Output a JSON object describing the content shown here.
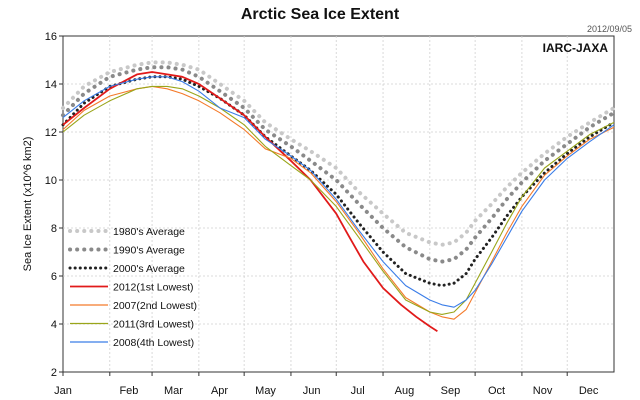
{
  "chart_data": {
    "type": "line",
    "title": "Arctic Sea Ice Extent",
    "date_stamp": "2012/09/05",
    "source_label": "IARC-JAXA",
    "ylabel": "Sea Ice Extent (x10^6 km2)",
    "xlabel": "",
    "ylim": [
      2,
      16
    ],
    "yticks": [
      2,
      4,
      6,
      8,
      10,
      12,
      14,
      16
    ],
    "xlim": [
      1,
      366
    ],
    "month_ticks": [
      {
        "label": "Jan",
        "day": 1
      },
      {
        "label": "Feb",
        "day": 32
      },
      {
        "label": "Mar",
        "day": 60
      },
      {
        "label": "Apr",
        "day": 91
      },
      {
        "label": "May",
        "day": 121
      },
      {
        "label": "Jun",
        "day": 152
      },
      {
        "label": "Jul",
        "day": 182
      },
      {
        "label": "Aug",
        "day": 213
      },
      {
        "label": "Sep",
        "day": 244
      },
      {
        "label": "Oct",
        "day": 274
      },
      {
        "label": "Nov",
        "day": 305
      },
      {
        "label": "Dec",
        "day": 335
      }
    ],
    "grid": true,
    "legend_position": "bottom-left",
    "series": [
      {
        "name": "1980's Average",
        "color": "#c8c8c8",
        "style": "dotted",
        "x": [
          1,
          15,
          32,
          50,
          60,
          70,
          80,
          91,
          105,
          121,
          135,
          152,
          165,
          182,
          197,
          213,
          228,
          244,
          252,
          260,
          268,
          274,
          285,
          295,
          305,
          320,
          335,
          350,
          366
        ],
        "y": [
          13.0,
          13.9,
          14.5,
          14.8,
          14.9,
          14.9,
          14.8,
          14.6,
          14.0,
          13.3,
          12.4,
          11.7,
          11.2,
          10.5,
          9.5,
          8.6,
          7.8,
          7.4,
          7.3,
          7.4,
          7.8,
          8.3,
          9.0,
          9.7,
          10.3,
          11.1,
          11.8,
          12.4,
          13.0
        ]
      },
      {
        "name": "1990's Average",
        "color": "#8a8a8a",
        "style": "dotted",
        "x": [
          1,
          15,
          32,
          50,
          60,
          70,
          80,
          91,
          105,
          121,
          135,
          152,
          165,
          182,
          197,
          213,
          228,
          244,
          252,
          260,
          268,
          274,
          285,
          295,
          305,
          320,
          335,
          350,
          366
        ],
        "y": [
          12.7,
          13.6,
          14.3,
          14.6,
          14.7,
          14.7,
          14.6,
          14.3,
          13.7,
          13.0,
          12.1,
          11.4,
          10.8,
          10.0,
          9.0,
          8.0,
          7.2,
          6.7,
          6.6,
          6.7,
          7.1,
          7.6,
          8.4,
          9.2,
          9.9,
          10.8,
          11.5,
          12.2,
          12.8
        ]
      },
      {
        "name": "2000's Average",
        "color": "#222222",
        "style": "dotted",
        "x": [
          1,
          15,
          32,
          50,
          60,
          70,
          80,
          91,
          105,
          121,
          135,
          152,
          165,
          182,
          197,
          213,
          228,
          244,
          252,
          260,
          268,
          274,
          285,
          295,
          305,
          320,
          335,
          350,
          366
        ],
        "y": [
          12.3,
          13.2,
          13.9,
          14.2,
          14.3,
          14.3,
          14.2,
          13.9,
          13.4,
          12.7,
          11.8,
          11.0,
          10.4,
          9.4,
          8.2,
          7.0,
          6.1,
          5.7,
          5.6,
          5.7,
          6.1,
          6.7,
          7.6,
          8.5,
          9.3,
          10.3,
          11.1,
          11.8,
          12.4
        ]
      },
      {
        "name": "2012(1st Lowest)",
        "color": "#e11a1a",
        "style": "solid",
        "x": [
          1,
          15,
          32,
          50,
          60,
          70,
          80,
          91,
          105,
          121,
          135,
          152,
          165,
          182,
          190,
          200,
          213,
          225,
          235,
          244,
          249
        ],
        "y": [
          12.3,
          13.0,
          13.8,
          14.4,
          14.5,
          14.4,
          14.3,
          14.0,
          13.4,
          12.7,
          11.8,
          10.8,
          10.0,
          8.6,
          7.7,
          6.6,
          5.5,
          4.8,
          4.3,
          3.9,
          3.7
        ]
      },
      {
        "name": "2007(2nd Lowest)",
        "color": "#f47a2a",
        "style": "solid",
        "x": [
          1,
          15,
          32,
          50,
          60,
          70,
          80,
          91,
          105,
          121,
          135,
          152,
          165,
          182,
          197,
          213,
          228,
          244,
          252,
          260,
          268,
          274,
          285,
          295,
          305,
          320,
          335,
          350,
          366
        ],
        "y": [
          12.1,
          12.9,
          13.5,
          13.8,
          13.9,
          13.8,
          13.6,
          13.3,
          12.8,
          12.1,
          11.3,
          10.9,
          10.3,
          9.1,
          7.8,
          6.3,
          5.1,
          4.5,
          4.3,
          4.2,
          4.6,
          5.3,
          6.6,
          7.8,
          8.9,
          10.2,
          11.0,
          11.7,
          12.2
        ]
      },
      {
        "name": "2011(3rd Lowest)",
        "color": "#9aa51a",
        "style": "solid",
        "x": [
          1,
          15,
          32,
          50,
          60,
          70,
          80,
          91,
          105,
          121,
          135,
          152,
          165,
          182,
          197,
          213,
          228,
          244,
          252,
          260,
          268,
          274,
          285,
          295,
          305,
          320,
          335,
          350,
          366
        ],
        "y": [
          12.0,
          12.7,
          13.3,
          13.8,
          13.9,
          13.9,
          13.8,
          13.5,
          13.0,
          12.3,
          11.4,
          10.6,
          10.0,
          8.9,
          7.6,
          6.2,
          5.0,
          4.5,
          4.4,
          4.5,
          5.0,
          5.7,
          7.0,
          8.2,
          9.3,
          10.5,
          11.2,
          11.9,
          12.4
        ]
      },
      {
        "name": "2008(4th Lowest)",
        "color": "#3a7de8",
        "style": "solid",
        "x": [
          1,
          15,
          32,
          50,
          60,
          70,
          80,
          91,
          105,
          121,
          135,
          152,
          165,
          182,
          197,
          213,
          228,
          244,
          252,
          260,
          268,
          274,
          285,
          295,
          305,
          320,
          335,
          350,
          366
        ],
        "y": [
          12.6,
          13.3,
          13.9,
          14.2,
          14.3,
          14.3,
          14.1,
          13.7,
          13.0,
          12.6,
          11.7,
          11.0,
          10.4,
          9.2,
          7.9,
          6.6,
          5.6,
          5.0,
          4.8,
          4.7,
          5.0,
          5.4,
          6.5,
          7.6,
          8.7,
          10.0,
          10.9,
          11.6,
          12.3
        ]
      }
    ]
  }
}
